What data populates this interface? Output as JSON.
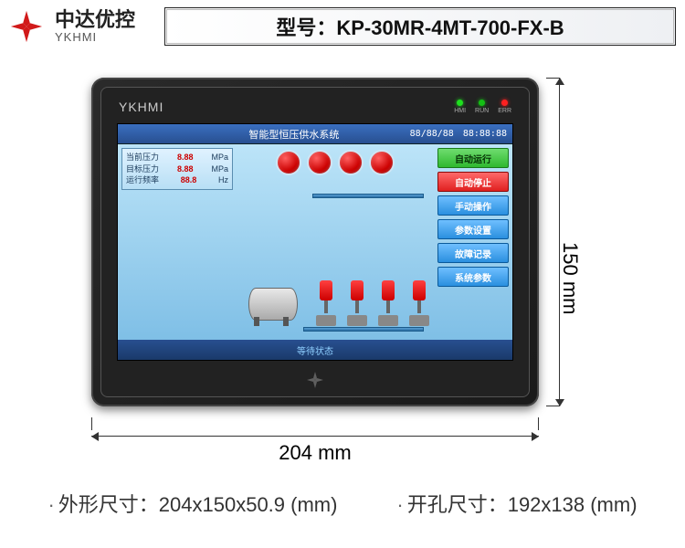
{
  "brand": {
    "cn": "中达优控",
    "en": "YKHMI"
  },
  "model": {
    "label_prefix": "型号：",
    "value": "KP-30MR-4MT-700-FX-B"
  },
  "device": {
    "bezel_brand": "YKHMI",
    "leds": [
      {
        "name": "HMI",
        "color": "led-green"
      },
      {
        "name": "RUN",
        "color": "led-green2"
      },
      {
        "name": "ERR",
        "color": "led-red"
      }
    ]
  },
  "screen": {
    "title": "智能型恒压供水系统",
    "date": "88/88/88",
    "time": "88:88:88",
    "stats": [
      {
        "label": "当前压力",
        "value": "8.88",
        "unit": "MPa"
      },
      {
        "label": "目标压力",
        "value": "8.88",
        "unit": "MPa"
      },
      {
        "label": "运行频率",
        "value": "88.8",
        "unit": "Hz"
      }
    ],
    "indicator_count": 4,
    "pump_count": 4,
    "buttons": [
      {
        "label": "自动运行",
        "style": "btn-green",
        "name": "auto-run-button"
      },
      {
        "label": "自动停止",
        "style": "btn-red",
        "name": "auto-stop-button"
      },
      {
        "label": "手动操作",
        "style": "btn-blue",
        "name": "manual-op-button"
      },
      {
        "label": "参数设置",
        "style": "btn-blue",
        "name": "param-set-button"
      },
      {
        "label": "故障记录",
        "style": "btn-blue",
        "name": "fault-log-button"
      },
      {
        "label": "系统参数",
        "style": "btn-blue",
        "name": "sys-param-button"
      }
    ],
    "status_text": "等待状态"
  },
  "dimensions": {
    "width_label": "204 mm",
    "height_label": "150 mm",
    "outline_label": "外形尺寸：",
    "outline_value": "204x150x50.9 (mm)",
    "cutout_label": "开孔尺寸：",
    "cutout_value": "192x138 (mm)"
  },
  "colors": {
    "accent_red": "#d11a1a",
    "frame_dark": "#1a1a1a",
    "screen_blue": "#2a6fa4"
  }
}
